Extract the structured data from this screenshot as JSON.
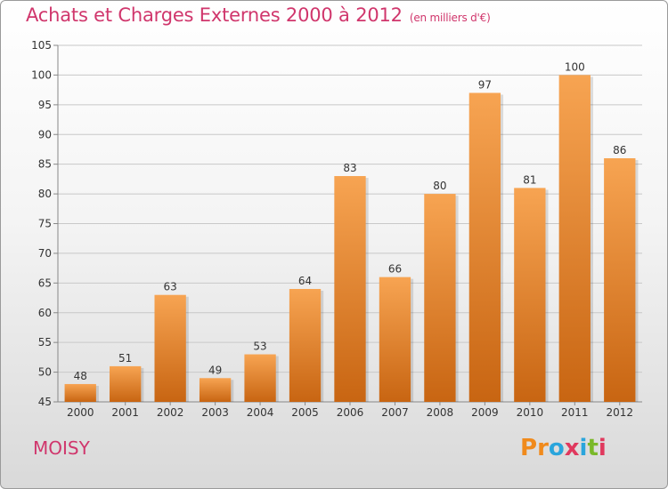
{
  "header": {
    "title": "Achats et Charges Externes 2000 à 2012",
    "subtitle": "(en milliers d'€)"
  },
  "footer": {
    "town": "MOISY",
    "brand": "Proxiti",
    "brand_letters": [
      {
        "ch": "P",
        "color": "#f08a1c"
      },
      {
        "ch": "r",
        "color": "#f08a1c"
      },
      {
        "ch": "o",
        "color": "#2aa5dc"
      },
      {
        "ch": "x",
        "color": "#e0395e"
      },
      {
        "ch": "i",
        "color": "#2aa5dc"
      },
      {
        "ch": "t",
        "color": "#7ab929"
      },
      {
        "ch": "i",
        "color": "#e0395e"
      }
    ]
  },
  "colors": {
    "accent": "#d0366c",
    "bar_light": "#f7a452",
    "bar_dark": "#c86512",
    "grid": "#c8c8c8"
  },
  "chart_data": {
    "type": "bar",
    "categories": [
      "2000",
      "2001",
      "2002",
      "2003",
      "2004",
      "2005",
      "2006",
      "2007",
      "2008",
      "2009",
      "2010",
      "2011",
      "2012"
    ],
    "values": [
      48,
      51,
      63,
      49,
      53,
      64,
      83,
      66,
      80,
      97,
      81,
      100,
      86
    ],
    "ylim": [
      45,
      105
    ],
    "yticks": [
      45,
      50,
      55,
      60,
      65,
      70,
      75,
      80,
      85,
      90,
      95,
      100,
      105
    ],
    "grid": true,
    "xlabel": "",
    "ylabel": ""
  }
}
